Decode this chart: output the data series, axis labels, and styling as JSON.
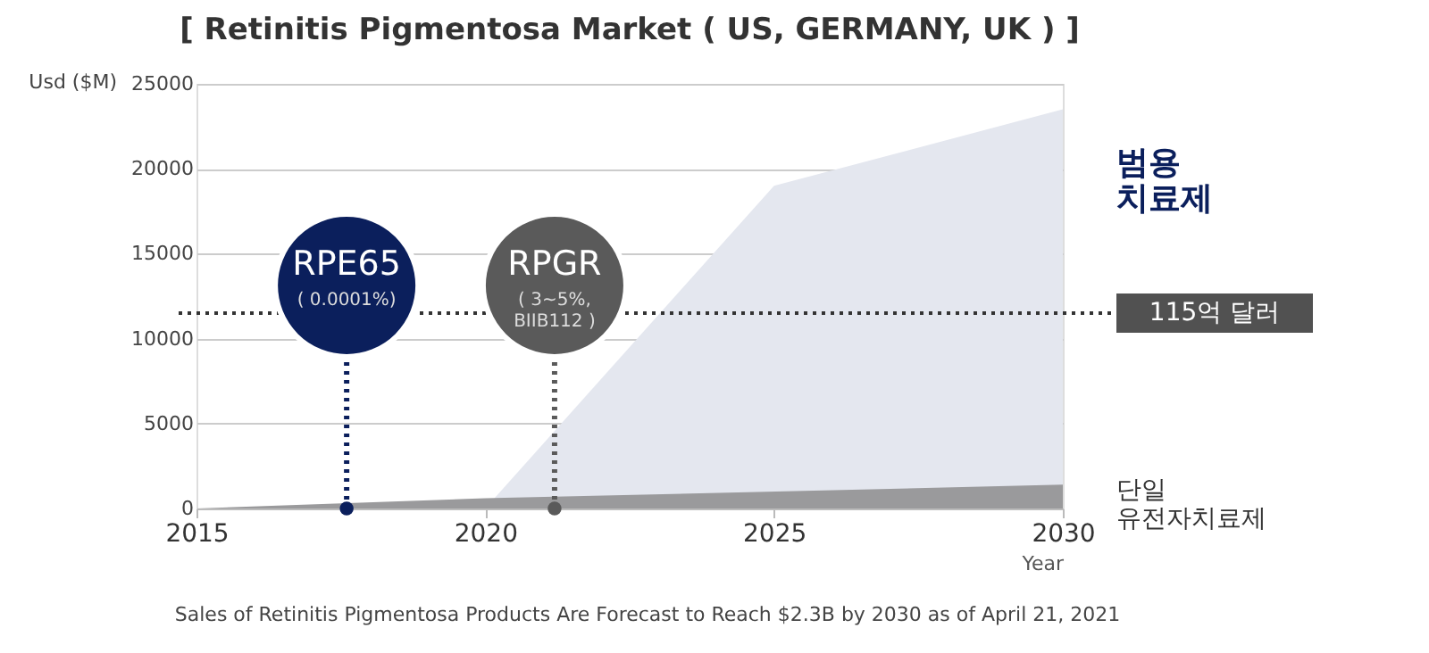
{
  "chart_data": {
    "type": "area",
    "title": "[ Retinitis Pigmentosa Market ( US, GERMANY, UK ) ]",
    "xlabel": "Year",
    "ylabel": "Usd ($M)",
    "series": [
      {
        "name": "범용 치료제",
        "color": "#e4e7ef",
        "x": [
          2020,
          2025,
          2030
        ],
        "values": [
          0,
          19000,
          23500
        ]
      },
      {
        "name": "단일 유전자치료제",
        "color": "#9a9a9c",
        "x": [
          2015,
          2020,
          2030
        ],
        "values": [
          0,
          600,
          1400
        ]
      }
    ],
    "xlim": [
      2015,
      2030
    ],
    "xticks": [
      2015,
      2020,
      2025,
      2030
    ],
    "ylim": [
      0,
      25000
    ],
    "yticks": [
      0,
      5000,
      10000,
      15000,
      20000,
      25000
    ],
    "grid": "y",
    "ref_lines": [
      {
        "axis": "y",
        "value": 11500,
        "label": "115억 달러",
        "color": "#333333",
        "line_style": "dotted"
      }
    ],
    "annotations": [
      {
        "text": "RPE65\n( 0.0001%)",
        "x": 2017.6,
        "y": 0
      },
      {
        "text": "RPGR\n( 3~5%,\nBIIB112 )",
        "x": 2021.2,
        "y": 0
      },
      "Sales of Retinitis Pigmentosa Products Are Forecast to Reach $2.3B by 2030 as of April 21, 2021"
    ]
  }
}
